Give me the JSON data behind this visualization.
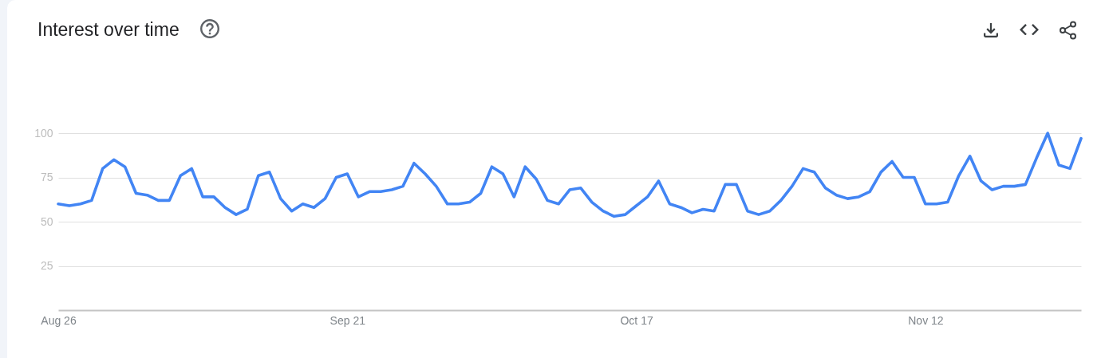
{
  "chart_data": {
    "type": "line",
    "title": "Interest over time",
    "x": [
      "--08-26",
      "--08-27",
      "--08-28",
      "--08-29",
      "--08-30",
      "--08-31",
      "--09-01",
      "--09-02",
      "--09-03",
      "--09-04",
      "--09-05",
      "--09-06",
      "--09-07",
      "--09-08",
      "--09-09",
      "--09-10",
      "--09-11",
      "--09-12",
      "--09-13",
      "--09-14",
      "--09-15",
      "--09-16",
      "--09-17",
      "--09-18",
      "--09-19",
      "--09-20",
      "--09-21",
      "--09-22",
      "--09-23",
      "--09-24",
      "--09-25",
      "--09-26",
      "--09-27",
      "--09-28",
      "--09-29",
      "--09-30",
      "--10-01",
      "--10-02",
      "--10-03",
      "--10-04",
      "--10-05",
      "--10-06",
      "--10-07",
      "--10-08",
      "--10-09",
      "--10-10",
      "--10-11",
      "--10-12",
      "--10-13",
      "--10-14",
      "--10-15",
      "--10-16",
      "--10-17",
      "--10-18",
      "--10-19",
      "--10-20",
      "--10-21",
      "--10-22",
      "--10-23",
      "--10-24",
      "--10-25",
      "--10-26",
      "--10-27",
      "--10-28",
      "--10-29",
      "--10-30",
      "--10-31",
      "--11-01",
      "--11-02",
      "--11-03",
      "--11-04",
      "--11-05",
      "--11-06",
      "--11-07",
      "--11-08",
      "--11-09",
      "--11-10",
      "--11-11",
      "--11-12",
      "--11-13",
      "--11-14",
      "--11-15",
      "--11-16",
      "--11-17",
      "--11-18",
      "--11-19",
      "--11-20",
      "--11-21",
      "--11-22",
      "--11-23",
      "--11-24",
      "--11-25",
      "--11-26"
    ],
    "values": [
      60,
      59,
      60,
      62,
      80,
      85,
      81,
      66,
      65,
      62,
      62,
      76,
      80,
      64,
      64,
      58,
      54,
      57,
      76,
      78,
      63,
      56,
      60,
      58,
      63,
      75,
      77,
      64,
      67,
      67,
      68,
      70,
      83,
      77,
      70,
      60,
      60,
      61,
      66,
      81,
      77,
      64,
      81,
      74,
      62,
      60,
      68,
      69,
      61,
      56,
      53,
      54,
      59,
      64,
      73,
      60,
      58,
      55,
      57,
      56,
      71,
      71,
      56,
      54,
      56,
      62,
      70,
      80,
      78,
      69,
      65,
      63,
      64,
      67,
      78,
      84,
      75,
      75,
      60,
      60,
      61,
      76,
      87,
      73,
      68,
      70,
      70,
      71,
      86,
      100,
      82,
      80,
      97
    ],
    "color": "#4285f4",
    "xlim": [
      "--08-26",
      "--11-26"
    ],
    "xticks": [
      {
        "value": "--08-26",
        "label": "Aug 26"
      },
      {
        "value": "--09-21",
        "label": "Sep 21"
      },
      {
        "value": "--10-17",
        "label": "Oct 17"
      },
      {
        "value": "--11-12",
        "label": "Nov 12"
      }
    ],
    "ylim": [
      0,
      100
    ],
    "yticks": [
      25,
      50,
      75,
      100
    ],
    "grid": "y"
  }
}
